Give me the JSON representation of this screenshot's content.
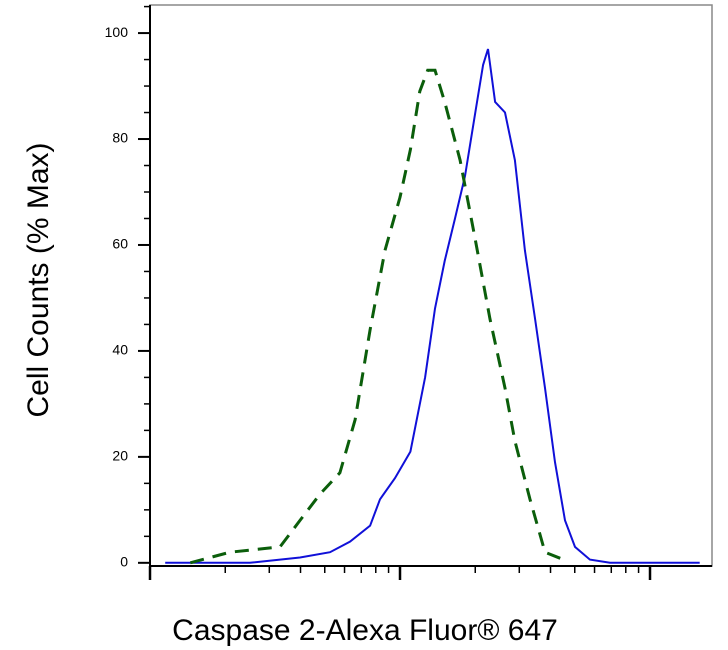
{
  "chart_data": {
    "type": "line",
    "log_x": true,
    "xlabel": "Caspase 2-Alexa Fluor® 647",
    "ylabel": "Cell Counts (% Max)",
    "xlim": [
      1,
      177
    ],
    "ylim": [
      -0.6,
      105.3
    ],
    "xticks": [
      1,
      2,
      3,
      4,
      5,
      6,
      7,
      8,
      9,
      10,
      20,
      30,
      40,
      50,
      60,
      70,
      80,
      90,
      100
    ],
    "yticks": [
      0,
      20,
      40,
      60,
      80,
      100
    ],
    "yminorticks": [
      5,
      10,
      15,
      25,
      30,
      35,
      45,
      50,
      55,
      65,
      70,
      75,
      85,
      90,
      95,
      105
    ],
    "series": [
      {
        "color": "#1010d8",
        "dash": false,
        "x": [
          1.15,
          2.51,
          3.98,
          5.25,
          6.31,
          7.59,
          8.32,
          9.55,
          11.0,
          12.6,
          13.8,
          15.1,
          16.6,
          18.2,
          20.0,
          21.5,
          22.5,
          24.0,
          26.3,
          28.8,
          31.6,
          34.7,
          38.0,
          41.7,
          45.7,
          50.1,
          57.5,
          69.2,
          158
        ],
        "values": [
          0,
          0,
          1,
          2,
          4,
          7,
          12,
          16,
          21,
          35,
          48,
          57,
          65,
          73,
          85,
          94,
          97,
          87,
          85,
          76,
          59,
          46,
          33,
          19,
          8,
          3,
          0.6,
          0,
          0
        ]
      },
      {
        "color": "#0b5e0b",
        "dash": true,
        "x": [
          1.45,
          2.09,
          3.31,
          3.98,
          4.79,
          5.75,
          6.61,
          7.59,
          8.71,
          10,
          11.0,
          12.0,
          12.9,
          13.8,
          15.1,
          17.4,
          20.0,
          22.9,
          26.3,
          28.8,
          33.1,
          38.0,
          45.7
        ],
        "values": [
          0,
          2,
          3,
          8,
          13,
          17,
          27,
          44,
          59,
          69,
          78,
          89,
          93,
          93,
          87,
          76,
          61,
          46,
          33,
          23,
          12,
          2,
          0.5
        ]
      }
    ]
  }
}
